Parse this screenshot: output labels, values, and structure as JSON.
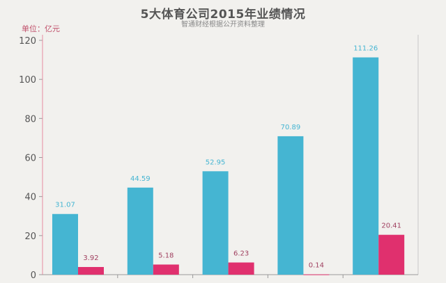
{
  "title": "5大体育公司2015年业绩情况",
  "subtitle": "智通财经根据公开资料整理",
  "unit": "单位：亿元",
  "chart_data": {
    "type": "bar",
    "categories": [
      "",
      "",
      "",
      "",
      ""
    ],
    "series": [
      {
        "values": [
          31.07,
          44.59,
          52.95,
          70.89,
          111.26
        ],
        "color": "#45b5d2"
      },
      {
        "values": [
          3.92,
          5.18,
          6.23,
          0.14,
          20.41
        ],
        "color": "#e0306e"
      }
    ],
    "ylim": [
      0,
      120
    ],
    "yticks": [
      0,
      20,
      40,
      60,
      80,
      100,
      120
    ],
    "grid": false
  }
}
